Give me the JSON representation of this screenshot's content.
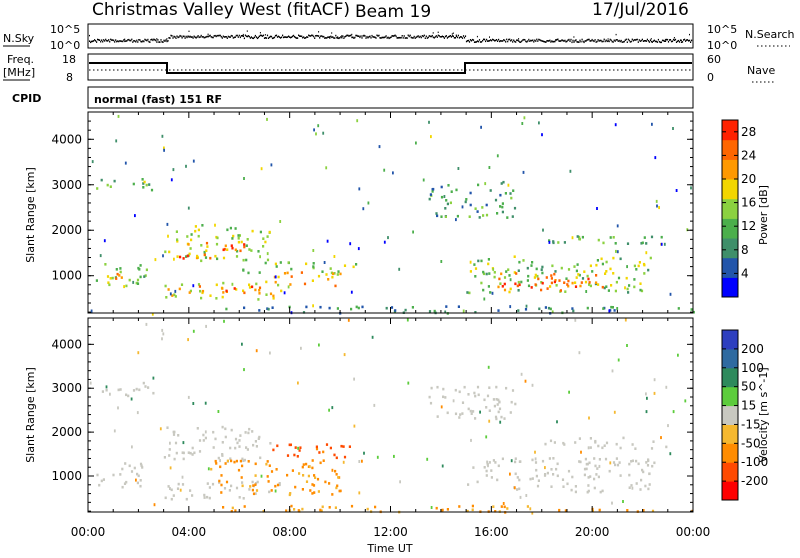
{
  "header": {
    "station": "Christmas Valley West (fitACF)",
    "beam": "Beam 19",
    "date": "17/Jul/2016"
  },
  "status_panels": {
    "nsky_label": "N.Sky",
    "nsky_ticks": [
      "10^5",
      "10^0"
    ],
    "nsearch_label": "N.Search",
    "nsearch_ticks": [
      "10^5",
      "10^0"
    ],
    "freq_label_1": "Freq.",
    "freq_label_2": "[MHz]",
    "freq_ticks": [
      "18",
      "8"
    ],
    "nave_label": "Nave",
    "nave_ticks": [
      "60",
      "0"
    ],
    "cpid_label": "CPID",
    "cpid_value": "normal (fast) 151 RF"
  },
  "colors": {
    "power_scale": [
      "#0000ff",
      "#2255aa",
      "#3f8f6a",
      "#4caf4c",
      "#8bd140",
      "#f2d600",
      "#ff9900",
      "#ff6600",
      "#ff2200"
    ],
    "velocity_scale": [
      "#2e3fbf",
      "#2f6aa0",
      "#2e8a5c",
      "#5ccc3c",
      "#c8c8c0",
      "#f5b830",
      "#ff8c00",
      "#ff4a00",
      "#ff0000"
    ]
  },
  "chart_data": [
    {
      "type": "heatmap",
      "name": "power",
      "ylabel": "Slant Range [km]",
      "xlabel": "Time UT",
      "x_ticks": [
        "00:00",
        "04:00",
        "08:00",
        "12:00",
        "16:00",
        "20:00",
        "00:00"
      ],
      "y_ticks": [
        1000,
        2000,
        3000,
        4000
      ],
      "ylim": [
        180,
        4600
      ],
      "xlim_hours": [
        0,
        24
      ],
      "colorbar_label": "Power [dB]",
      "colorbar_ticks": [
        4,
        8,
        12,
        16,
        20,
        24,
        28
      ],
      "colorbar_range": [
        0,
        30
      ],
      "regions": [
        {
          "t": [
            0.3,
            2.3
          ],
          "r": [
            750,
            1350
          ],
          "level": 14
        },
        {
          "t": [
            0.7,
            1.6
          ],
          "r": [
            900,
            1200
          ],
          "level": 21
        },
        {
          "t": [
            0.3,
            2.6
          ],
          "r": [
            2850,
            3150
          ],
          "level": 12
        },
        {
          "t": [
            3.0,
            7.2
          ],
          "r": [
            1350,
            2150
          ],
          "level": 15
        },
        {
          "t": [
            3.6,
            6.2
          ],
          "r": [
            1400,
            1800
          ],
          "level": 24
        },
        {
          "t": [
            3.0,
            7.8
          ],
          "r": [
            500,
            900
          ],
          "level": 18
        },
        {
          "t": [
            4.3,
            7.4
          ],
          "r": [
            600,
            800
          ],
          "level": 26
        },
        {
          "t": [
            6.0,
            10.6
          ],
          "r": [
            1050,
            1350
          ],
          "level": 14
        },
        {
          "t": [
            7.0,
            10.0
          ],
          "r": [
            800,
            1100
          ],
          "level": 20
        },
        {
          "t": [
            15.0,
            22.5
          ],
          "r": [
            650,
            1450
          ],
          "level": 14
        },
        {
          "t": [
            16.0,
            20.5
          ],
          "r": [
            700,
            1100
          ],
          "level": 24
        },
        {
          "t": [
            17.0,
            19.5
          ],
          "r": [
            700,
            900
          ],
          "level": 28
        },
        {
          "t": [
            18.0,
            23.0
          ],
          "r": [
            1650,
            1900
          ],
          "level": 12
        },
        {
          "t": [
            13.5,
            17.0
          ],
          "r": [
            2300,
            3100
          ],
          "level": 10
        },
        {
          "t": [
            5.0,
            24.0
          ],
          "r": [
            200,
            350
          ],
          "level": 8
        }
      ]
    },
    {
      "type": "heatmap",
      "name": "velocity",
      "ylabel": "Slant Range [km]",
      "xlabel": "Time UT",
      "x_ticks": [
        "00:00",
        "04:00",
        "08:00",
        "12:00",
        "16:00",
        "20:00",
        "00:00"
      ],
      "y_ticks": [
        1000,
        2000,
        3000,
        4000
      ],
      "ylim": [
        180,
        4600
      ],
      "xlim_hours": [
        0,
        24
      ],
      "colorbar_label": "Velocity [m s^-1]",
      "colorbar_ticks": [
        200,
        100,
        50,
        15,
        -15,
        -50,
        -100,
        -200
      ],
      "regions": [
        {
          "t": [
            0.3,
            2.3
          ],
          "r": [
            750,
            1350
          ],
          "v": 0
        },
        {
          "t": [
            0.3,
            2.6
          ],
          "r": [
            2850,
            3150
          ],
          "v": 0
        },
        {
          "t": [
            3.0,
            7.2
          ],
          "r": [
            1350,
            2150
          ],
          "v": 0
        },
        {
          "t": [
            3.0,
            7.8
          ],
          "r": [
            500,
            900
          ],
          "v": 0
        },
        {
          "t": [
            4.8,
            10.0
          ],
          "r": [
            600,
            1400
          ],
          "v": -45
        },
        {
          "t": [
            7.0,
            10.5
          ],
          "r": [
            1400,
            1750
          ],
          "v": -90
        },
        {
          "t": [
            15.0,
            22.5
          ],
          "r": [
            650,
            1450
          ],
          "v": 0
        },
        {
          "t": [
            18.0,
            23.0
          ],
          "r": [
            1650,
            1900
          ],
          "v": 0
        },
        {
          "t": [
            13.5,
            17.0
          ],
          "r": [
            2300,
            3100
          ],
          "v": 0
        },
        {
          "t": [
            5.0,
            24.0
          ],
          "r": [
            200,
            350
          ],
          "v": -40
        }
      ]
    }
  ]
}
